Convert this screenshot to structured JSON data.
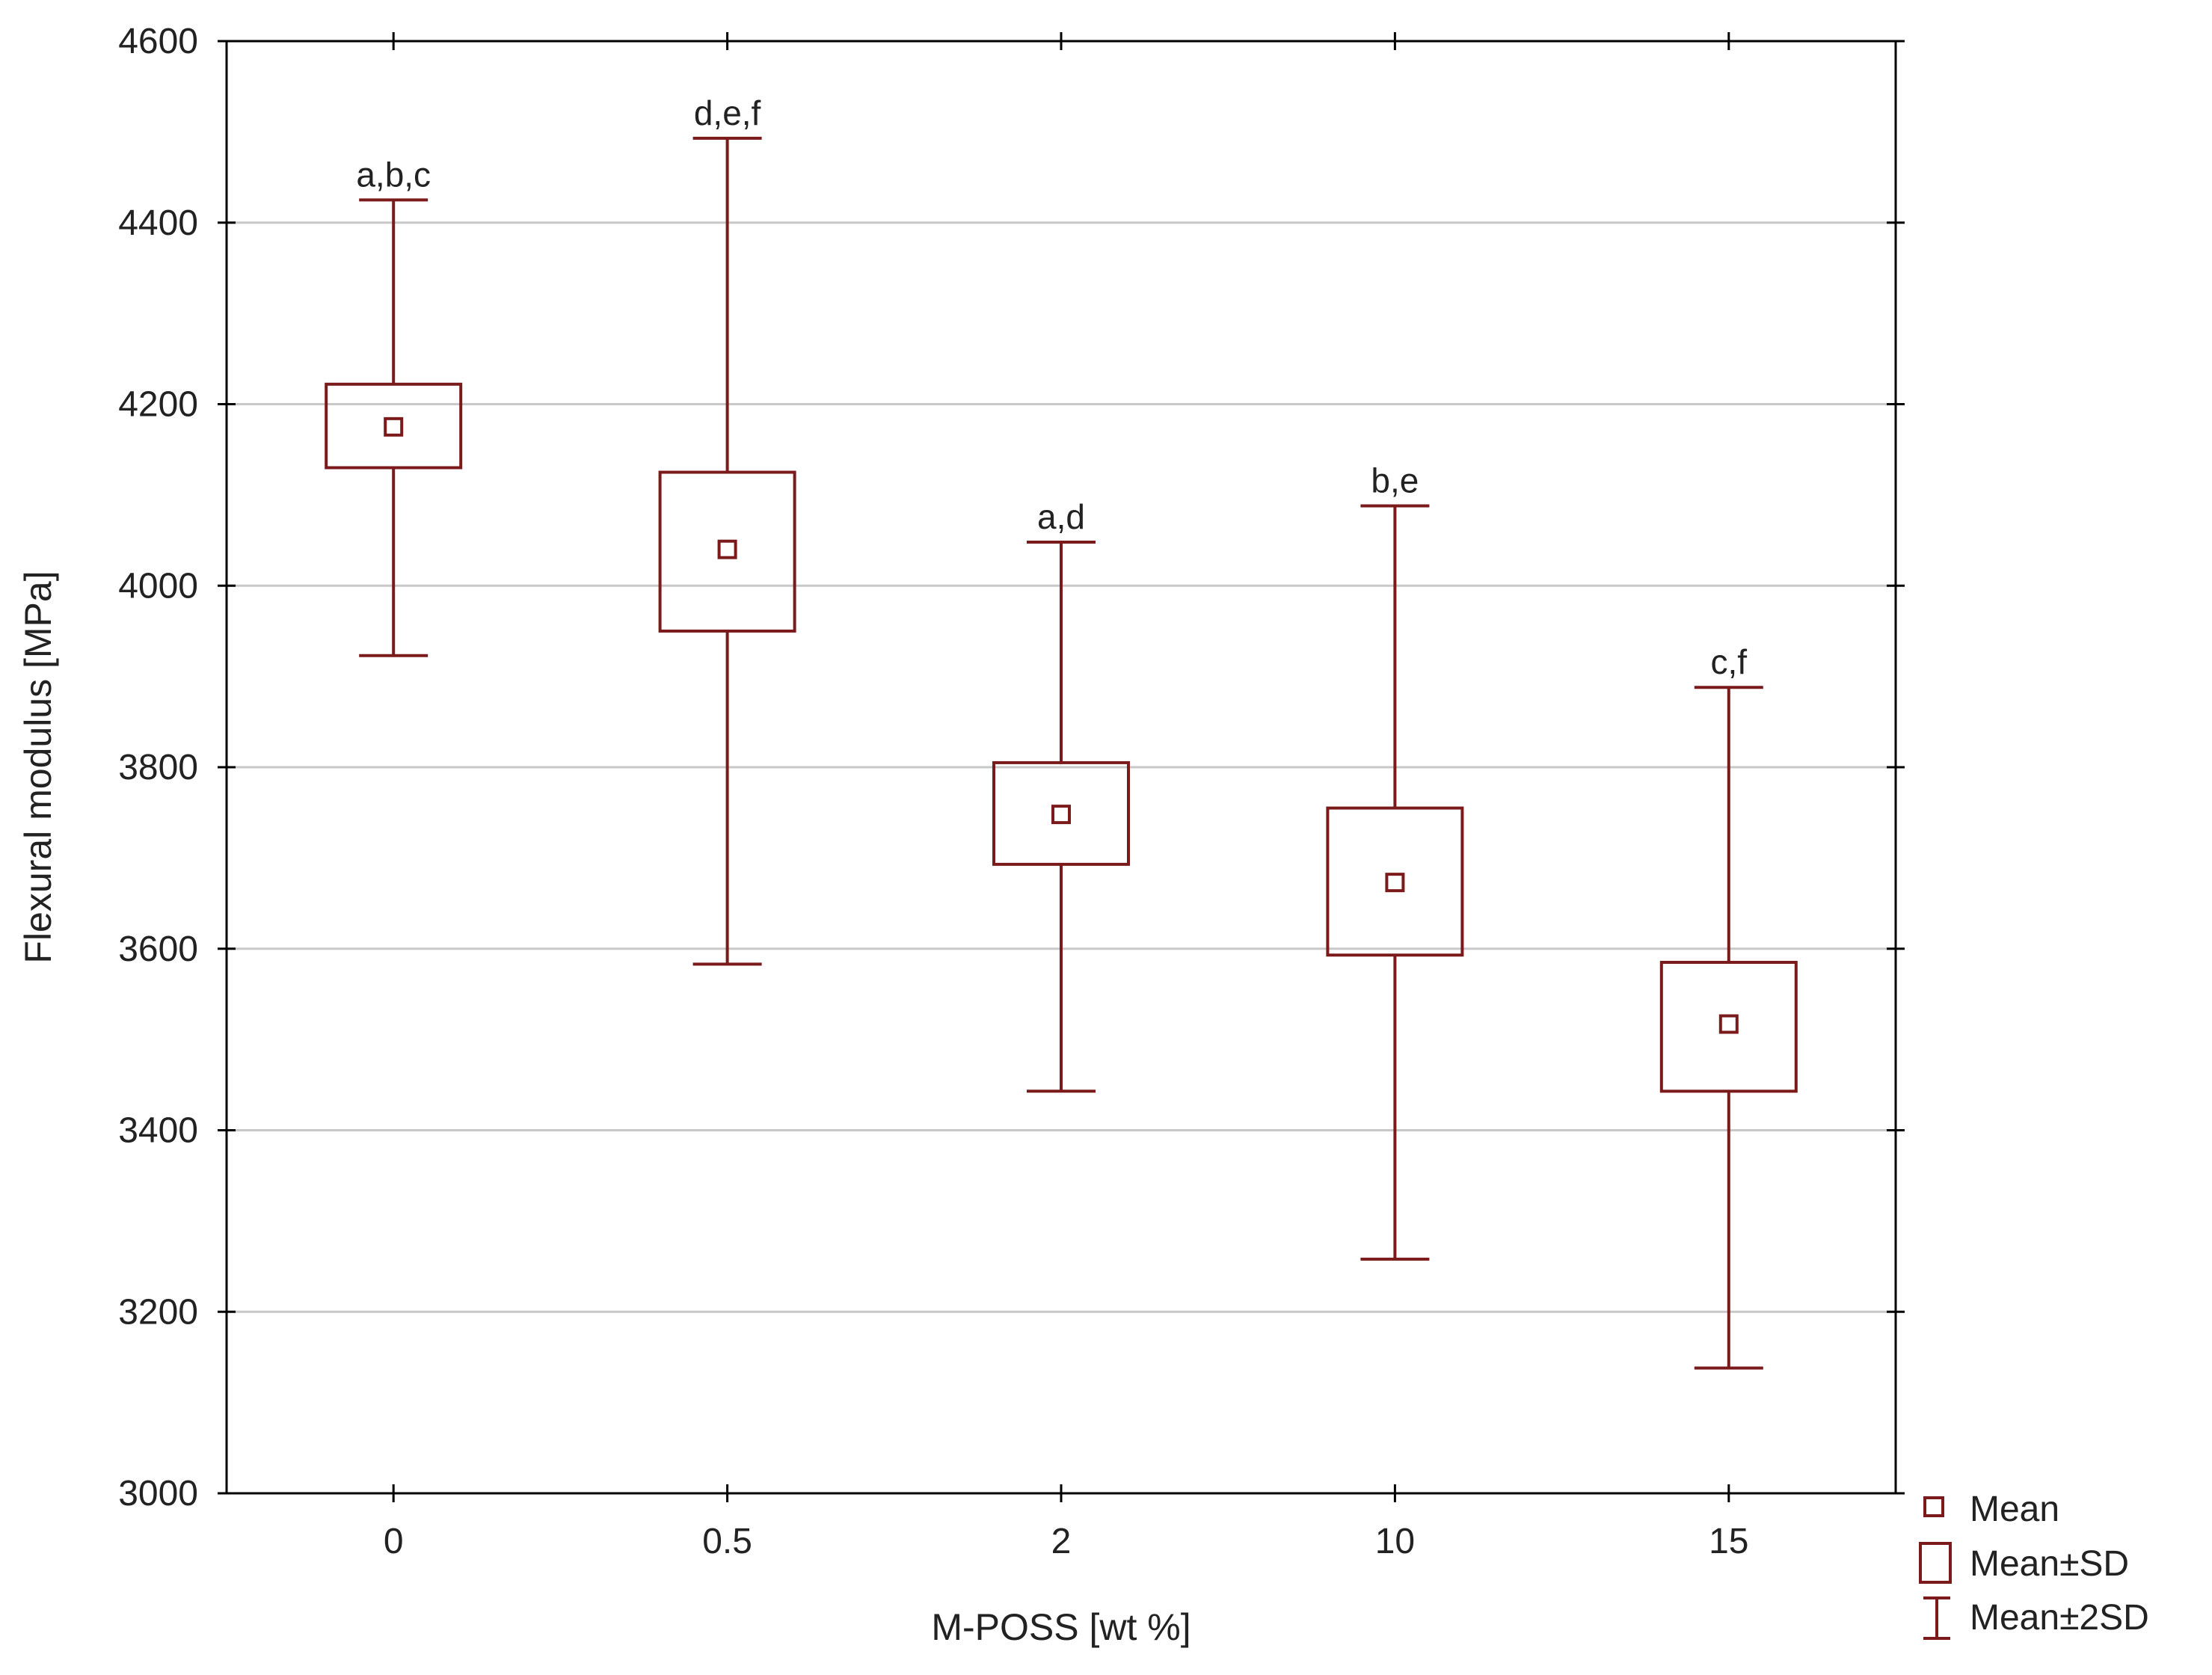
{
  "chart_data": {
    "type": "box",
    "xlabel": "M-POSS [wt %]",
    "ylabel": "Flexural modulus [MPa]",
    "ylim": [
      3000,
      4600
    ],
    "yticks": [
      3000,
      3200,
      3400,
      3600,
      3800,
      4000,
      4200,
      4400,
      4600
    ],
    "grid": "horizontal",
    "categories": [
      "0",
      "0.5",
      "2",
      "10",
      "15"
    ],
    "mean": [
      4175,
      4040,
      3748,
      3673,
      3517
    ],
    "sd_low": [
      4130,
      3950,
      3693,
      3593,
      3443
    ],
    "sd_high": [
      4222,
      4125,
      3805,
      3755,
      3585
    ],
    "sd2_low": [
      3923,
      3583,
      3443,
      3258,
      3138
    ],
    "sd2_high": [
      4425,
      4493,
      4048,
      4088,
      3888
    ],
    "annotations": [
      "a,b,c",
      "d,e,f",
      "a,d",
      "b,e",
      "c,f"
    ],
    "legend": {
      "position": "bottom-right",
      "entries": [
        "Mean",
        "Mean±SD",
        "Mean±2SD"
      ]
    },
    "color": "#7a1a1a"
  }
}
